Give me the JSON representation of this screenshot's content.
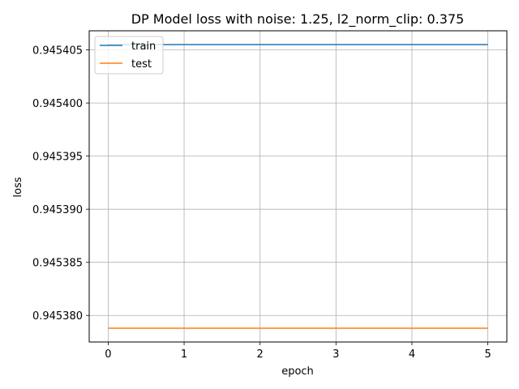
{
  "chart_data": {
    "type": "line",
    "title": "DP Model loss with noise: 1.25, l2_norm_clip: 0.375",
    "xlabel": "epoch",
    "ylabel": "loss",
    "x": [
      0,
      1,
      2,
      3,
      4,
      5
    ],
    "series": [
      {
        "name": "train",
        "color": "#1f77b4",
        "values": [
          0.9454055,
          0.9454055,
          0.9454055,
          0.9454055,
          0.9454055,
          0.9454055
        ]
      },
      {
        "name": "test",
        "color": "#ff7f0e",
        "values": [
          0.9453788,
          0.9453788,
          0.9453788,
          0.9453788,
          0.9453788,
          0.9453788
        ]
      }
    ],
    "xticks": [
      0,
      1,
      2,
      3,
      4,
      5
    ],
    "xtick_labels": [
      "0",
      "1",
      "2",
      "3",
      "4",
      "5"
    ],
    "yticks": [
      0.94538,
      0.945385,
      0.94539,
      0.945395,
      0.9454,
      0.945405
    ],
    "ytick_labels": [
      "0.945380",
      "0.945385",
      "0.945390",
      "0.945395",
      "0.945400",
      "0.945405"
    ],
    "xlim": [
      -0.25,
      5.25
    ],
    "ylim": [
      0.9453775,
      0.9454068
    ],
    "grid": true,
    "legend_position": "upper-left"
  }
}
